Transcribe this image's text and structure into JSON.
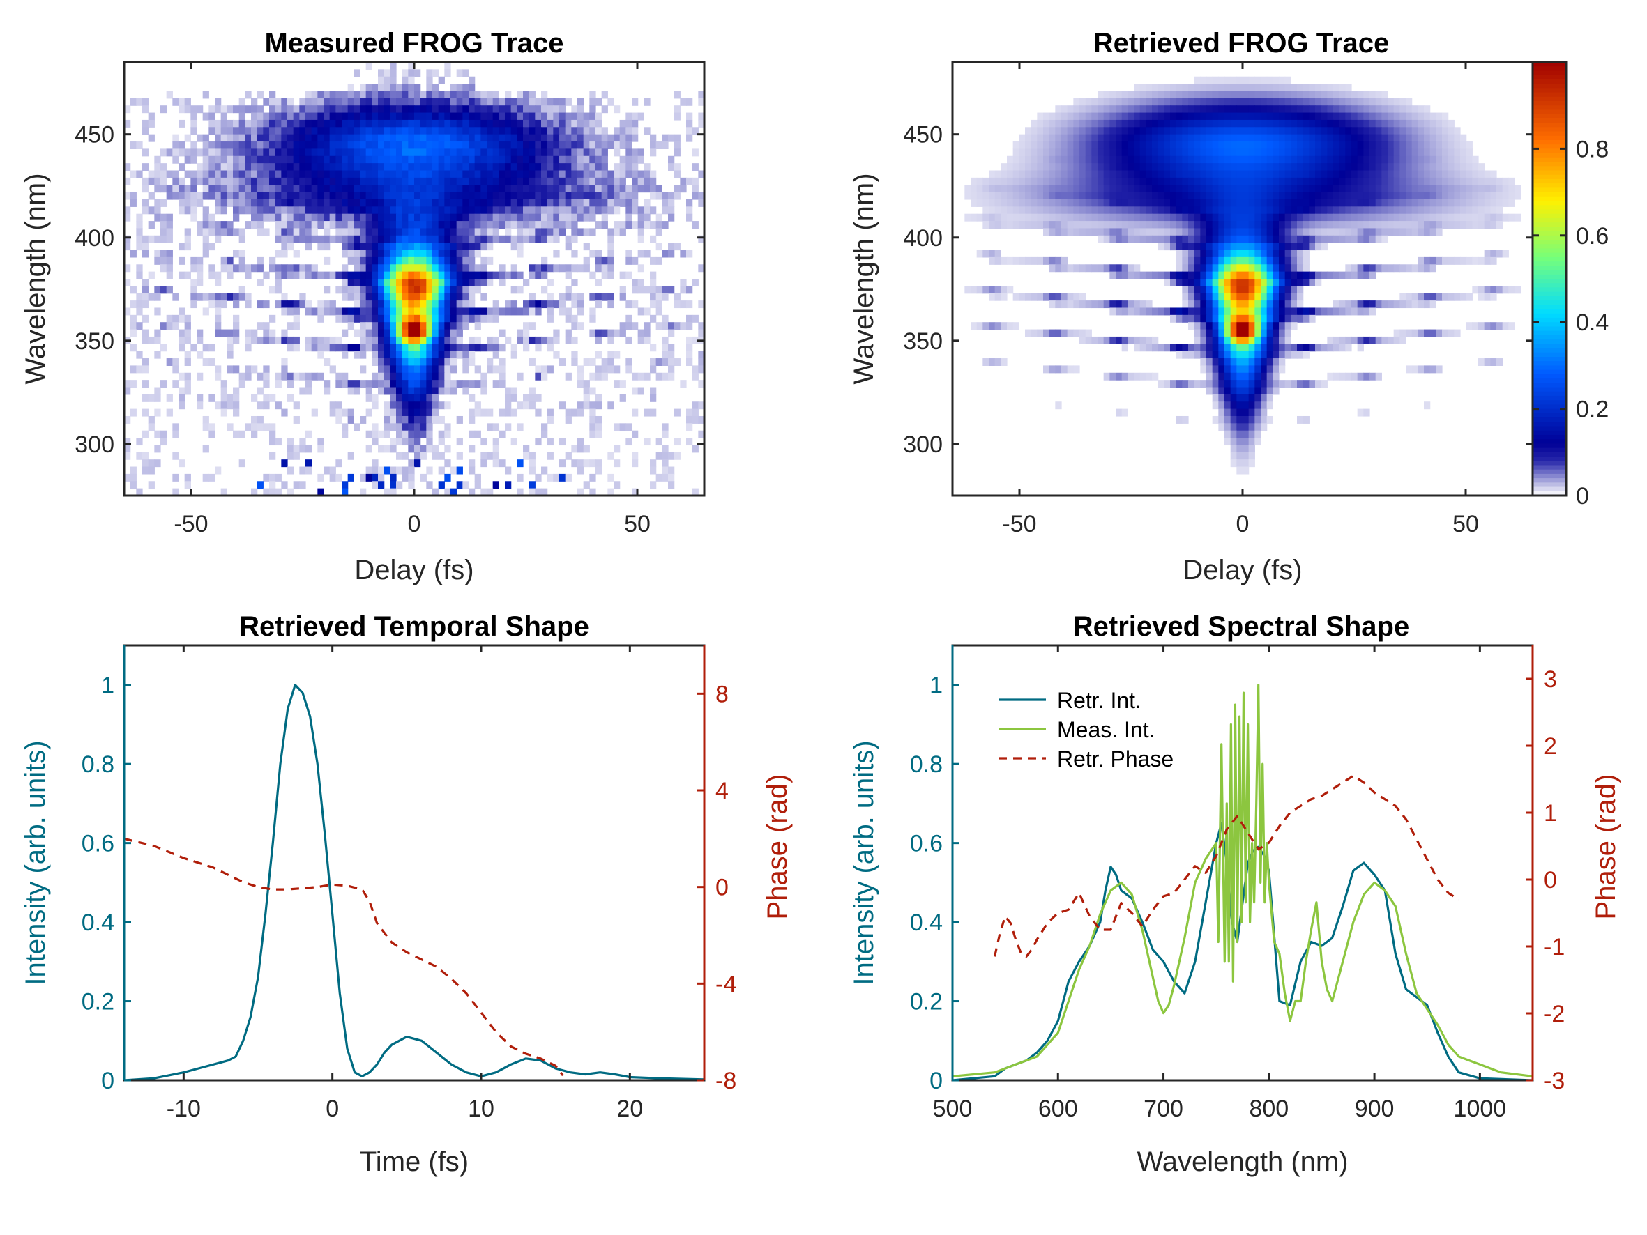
{
  "chart_data": [
    {
      "type": "heatmap",
      "title": "Measured FROG Trace",
      "xlabel": "Delay (fs)",
      "ylabel": "Wavelength (nm)",
      "xlim": [
        -65,
        65
      ],
      "ylim": [
        275,
        485
      ],
      "xticks": [
        -50,
        0,
        50
      ],
      "yticks": [
        300,
        350,
        400,
        450
      ],
      "colormap": "white-blue-cyan-yellow-red",
      "z_range": [
        0,
        1
      ],
      "description_values": {
        "peak_delay_fs": 0,
        "peak_wavelength_nm": 378,
        "secondary_peak_wavelength_nm": 355,
        "blue_lobe_wavelength_nm": 445
      },
      "noisy": true
    },
    {
      "type": "heatmap",
      "title": "Retrieved FROG Trace",
      "xlabel": "Delay (fs)",
      "ylabel": "Wavelength (nm)",
      "xlim": [
        -65,
        65
      ],
      "ylim": [
        275,
        485
      ],
      "xticks": [
        -50,
        0,
        50
      ],
      "yticks": [
        300,
        350,
        400,
        450
      ],
      "colormap": "white-blue-cyan-yellow-red",
      "z_range": [
        0,
        1
      ],
      "colorbar": {
        "ticks": [
          0,
          0.2,
          0.4,
          0.6,
          0.8
        ],
        "labels": [
          "0",
          "0.2",
          "0.4",
          "0.6",
          "0.8"
        ]
      },
      "noisy": false
    },
    {
      "type": "line",
      "title": "Retrieved Temporal Shape",
      "xlabel": "Time (fs)",
      "ylabel": "Intensity (arb. units)",
      "ylabel_right": "Phase (rad)",
      "xlim": [
        -14,
        25
      ],
      "ylim": [
        0,
        1.1
      ],
      "ylim_right": [
        -8,
        10
      ],
      "xticks": [
        -10,
        0,
        10,
        20
      ],
      "yticks": [
        0,
        0.2,
        0.4,
        0.6,
        0.8,
        1
      ],
      "yticks_right": [
        -8,
        -4,
        0,
        4,
        8
      ],
      "series": [
        {
          "axis": "left",
          "color": "#006b82",
          "style": "solid",
          "x": [
            -14,
            -12,
            -10,
            -9,
            -8,
            -7,
            -6.5,
            -6,
            -5.5,
            -5,
            -4.5,
            -4,
            -3.5,
            -3,
            -2.5,
            -2,
            -1.5,
            -1,
            -0.5,
            0,
            0.5,
            1,
            1.5,
            2,
            2.5,
            3,
            3.5,
            4,
            5,
            6,
            7,
            8,
            9,
            10,
            11,
            12,
            13,
            14,
            15,
            16,
            17,
            18,
            19,
            20,
            22,
            25
          ],
          "y": [
            0,
            0.005,
            0.02,
            0.03,
            0.04,
            0.05,
            0.06,
            0.1,
            0.16,
            0.26,
            0.42,
            0.6,
            0.8,
            0.94,
            1.0,
            0.98,
            0.92,
            0.8,
            0.62,
            0.42,
            0.22,
            0.08,
            0.02,
            0.01,
            0.02,
            0.04,
            0.07,
            0.09,
            0.11,
            0.1,
            0.07,
            0.04,
            0.02,
            0.01,
            0.02,
            0.04,
            0.055,
            0.05,
            0.03,
            0.02,
            0.015,
            0.02,
            0.015,
            0.008,
            0.005,
            0.002
          ]
        },
        {
          "axis": "right",
          "color": "#b01e0a",
          "style": "dashed",
          "x": [
            -14,
            -12,
            -10,
            -8,
            -7,
            -6,
            -5,
            -4,
            -3,
            -2,
            -1,
            0,
            1,
            2,
            2.5,
            3,
            4,
            5,
            6,
            7,
            8,
            9,
            10,
            11,
            12,
            13,
            14,
            15,
            15.5
          ],
          "y": [
            2,
            1.7,
            1.2,
            0.8,
            0.5,
            0.2,
            0,
            -0.1,
            -0.1,
            -0.05,
            0,
            0.1,
            0.05,
            -0.1,
            -0.6,
            -1.5,
            -2.3,
            -2.7,
            -3,
            -3.3,
            -3.8,
            -4.4,
            -5.2,
            -6,
            -6.6,
            -6.9,
            -7.1,
            -7.4,
            -7.8
          ]
        }
      ]
    },
    {
      "type": "line",
      "title": "Retrieved Spectral Shape",
      "xlabel": "Wavelength (nm)",
      "ylabel": "Intensity (arb. units)",
      "ylabel_right": "Phase (rad)",
      "xlim": [
        500,
        1050
      ],
      "ylim": [
        0,
        1.1
      ],
      "ylim_right": [
        -3,
        3.5
      ],
      "xticks": [
        500,
        600,
        700,
        800,
        900,
        1000
      ],
      "yticks": [
        0,
        0.2,
        0.4,
        0.6,
        0.8,
        1
      ],
      "yticks_right": [
        -3,
        -2,
        -1,
        0,
        1,
        2,
        3
      ],
      "legend_position": "top-left",
      "series": [
        {
          "name": "Retr. Int.",
          "axis": "left",
          "color": "#006b82",
          "style": "solid",
          "x": [
            500,
            540,
            550,
            560,
            570,
            580,
            590,
            600,
            610,
            620,
            630,
            640,
            645,
            650,
            655,
            660,
            670,
            680,
            690,
            700,
            710,
            720,
            730,
            740,
            750,
            755,
            760,
            765,
            770,
            775,
            780,
            785,
            790,
            795,
            800,
            810,
            820,
            830,
            840,
            850,
            860,
            870,
            880,
            890,
            900,
            910,
            920,
            930,
            940,
            950,
            960,
            970,
            980,
            1000,
            1050
          ],
          "y": [
            0,
            0.01,
            0.03,
            0.04,
            0.05,
            0.07,
            0.1,
            0.15,
            0.25,
            0.3,
            0.34,
            0.4,
            0.48,
            0.54,
            0.52,
            0.48,
            0.46,
            0.4,
            0.33,
            0.3,
            0.25,
            0.22,
            0.3,
            0.45,
            0.6,
            0.65,
            0.55,
            0.4,
            0.35,
            0.45,
            0.55,
            0.58,
            0.59,
            0.57,
            0.53,
            0.2,
            0.19,
            0.3,
            0.35,
            0.34,
            0.36,
            0.44,
            0.53,
            0.55,
            0.52,
            0.48,
            0.32,
            0.23,
            0.21,
            0.19,
            0.12,
            0.06,
            0.02,
            0.005,
            0
          ]
        },
        {
          "name": "Meas. Int.",
          "axis": "left",
          "color": "#8cc63f",
          "style": "solid",
          "x": [
            500,
            540,
            560,
            580,
            600,
            610,
            620,
            630,
            640,
            650,
            660,
            670,
            680,
            690,
            695,
            700,
            705,
            710,
            720,
            730,
            740,
            750,
            752,
            755,
            758,
            760,
            762,
            764,
            766,
            768,
            770,
            772,
            774,
            776,
            778,
            780,
            782,
            784,
            786,
            788,
            790,
            792,
            794,
            796,
            798,
            800,
            805,
            810,
            815,
            820,
            825,
            830,
            835,
            840,
            845,
            850,
            855,
            860,
            870,
            880,
            890,
            900,
            910,
            920,
            930,
            940,
            950,
            960,
            970,
            980,
            1000,
            1020,
            1050
          ],
          "y": [
            0.01,
            0.02,
            0.04,
            0.06,
            0.12,
            0.2,
            0.28,
            0.34,
            0.42,
            0.48,
            0.5,
            0.47,
            0.38,
            0.26,
            0.2,
            0.17,
            0.19,
            0.24,
            0.36,
            0.5,
            0.56,
            0.6,
            0.35,
            0.85,
            0.3,
            0.7,
            0.3,
            0.9,
            0.25,
            0.95,
            0.35,
            0.92,
            0.4,
            0.98,
            0.45,
            0.9,
            0.4,
            0.6,
            0.45,
            0.7,
            1.0,
            0.5,
            0.8,
            0.45,
            0.6,
            0.5,
            0.35,
            0.32,
            0.22,
            0.15,
            0.2,
            0.2,
            0.3,
            0.38,
            0.45,
            0.3,
            0.23,
            0.2,
            0.3,
            0.4,
            0.47,
            0.5,
            0.48,
            0.44,
            0.32,
            0.22,
            0.18,
            0.14,
            0.09,
            0.06,
            0.04,
            0.02,
            0.01
          ]
        },
        {
          "name": "Retr. Phase",
          "axis": "right",
          "color": "#b01e0a",
          "style": "dashed",
          "x": [
            540,
            545,
            550,
            555,
            560,
            565,
            570,
            575,
            580,
            590,
            600,
            610,
            620,
            630,
            640,
            650,
            660,
            670,
            680,
            690,
            700,
            710,
            720,
            730,
            740,
            750,
            760,
            770,
            780,
            790,
            800,
            810,
            820,
            830,
            840,
            850,
            860,
            870,
            880,
            890,
            900,
            910,
            920,
            930,
            940,
            950,
            960,
            970,
            980
          ],
          "y": [
            -1.15,
            -0.8,
            -0.55,
            -0.65,
            -0.9,
            -1.1,
            -1.15,
            -1.05,
            -0.9,
            -0.65,
            -0.5,
            -0.45,
            -0.2,
            -0.55,
            -0.75,
            -0.75,
            -0.35,
            -0.5,
            -0.7,
            -0.45,
            -0.25,
            -0.2,
            0.0,
            0.2,
            0.1,
            0.35,
            0.75,
            0.95,
            0.7,
            0.45,
            0.55,
            0.8,
            1.0,
            1.1,
            1.2,
            1.25,
            1.35,
            1.45,
            1.55,
            1.45,
            1.3,
            1.2,
            1.1,
            0.9,
            0.6,
            0.3,
            0.0,
            -0.2,
            -0.3
          ]
        }
      ]
    }
  ]
}
